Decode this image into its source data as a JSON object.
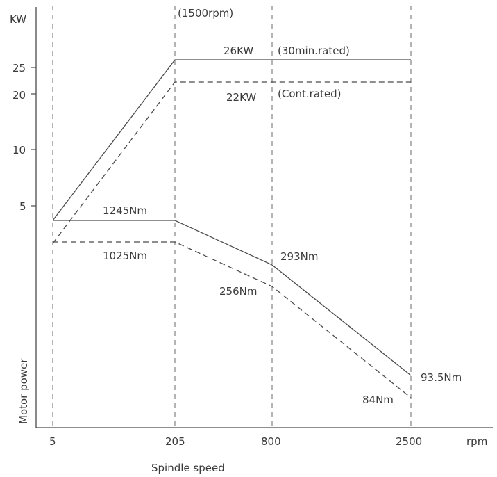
{
  "chart_data": {
    "type": "line",
    "title": "",
    "xlabel": "Spindle speed",
    "ylabel": "Motor power",
    "y_unit": "KW",
    "x_unit": "rpm",
    "x_ticks": [
      "5",
      "205",
      "800",
      "2500"
    ],
    "y_ticks": [
      "25",
      "20",
      "10",
      "5"
    ],
    "top_annotation": "(1500rpm)",
    "grid": "vertical dashed lines at x ticks",
    "series": [
      {
        "name": "(30min.rated)",
        "label": "26KW",
        "line": "solid",
        "points": [
          [
            5,
            4.1
          ],
          [
            205,
            26
          ],
          [
            2500,
            26
          ]
        ]
      },
      {
        "name": "(Cont.rated)",
        "label": "22KW",
        "line": "dashed",
        "points": [
          [
            5,
            2.1
          ],
          [
            205,
            22
          ],
          [
            2500,
            22
          ]
        ]
      },
      {
        "name": "",
        "line": "solid",
        "points": [
          [
            5,
            1245
          ],
          [
            205,
            1245
          ],
          [
            800,
            293
          ],
          [
            2500,
            93.5
          ]
        ],
        "point_labels": [
          "1245Nm",
          "",
          "293Nm",
          "93.5Nm"
        ]
      },
      {
        "name": "",
        "line": "dashed",
        "points": [
          [
            5,
            1025
          ],
          [
            205,
            1025
          ],
          [
            800,
            256
          ],
          [
            2500,
            84
          ]
        ],
        "point_labels": [
          "1025Nm",
          "",
          "256Nm",
          "84Nm"
        ]
      }
    ],
    "colors": {
      "line": "#4a4a4a",
      "grid": "#6a6a6a",
      "text": "#3a3a3a"
    }
  }
}
